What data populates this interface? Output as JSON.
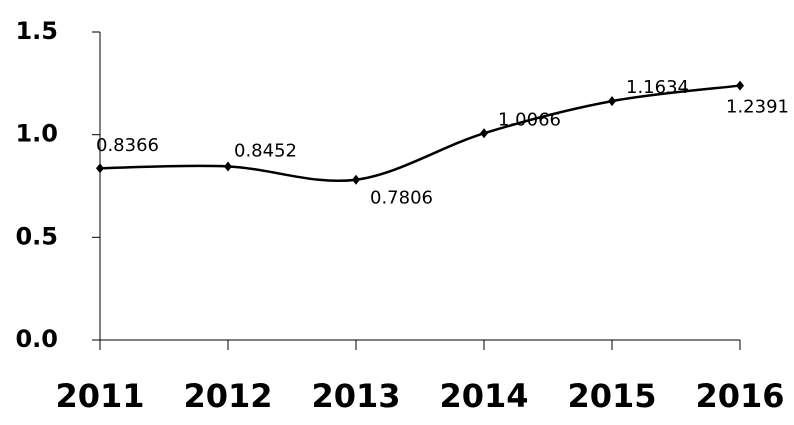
{
  "chart_data": {
    "type": "line",
    "categories": [
      "2011",
      "2012",
      "2013",
      "2014",
      "2015",
      "2016"
    ],
    "series": [
      {
        "color": "#000000",
        "values": [
          0.8366,
          0.8452,
          0.7806,
          1.0066,
          1.1634,
          1.2391
        ]
      }
    ],
    "ylim": [
      0,
      1.5
    ],
    "yticks": [
      {
        "value": 0,
        "label": "0.0"
      },
      0.5,
      {
        "value": 1,
        "label": "1.0"
      },
      1.5
    ],
    "grid": false
  }
}
